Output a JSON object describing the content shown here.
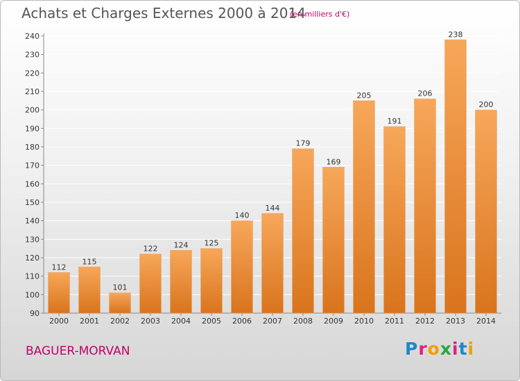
{
  "header": {
    "title": "Achats et Charges Externes 2000 à 2014",
    "subtitle": "(en milliers d'€)"
  },
  "footer": {
    "location": "BAGUER-MORVAN",
    "logo_text": "Proxiti"
  },
  "colors": {
    "bar_light": "#f7a75a",
    "bar_dark": "#d9741d",
    "title": "#555555",
    "accent": "#c0006a"
  },
  "chart_data": {
    "type": "bar",
    "title": "Achats et Charges Externes 2000 à 2014",
    "subtitle": "(en milliers d'€)",
    "categories": [
      "2000",
      "2001",
      "2002",
      "2003",
      "2004",
      "2005",
      "2006",
      "2007",
      "2008",
      "2009",
      "2010",
      "2011",
      "2012",
      "2013",
      "2014"
    ],
    "values": [
      112,
      115,
      101,
      122,
      124,
      125,
      140,
      144,
      179,
      169,
      205,
      191,
      206,
      238,
      200
    ],
    "ylim": [
      90,
      240
    ],
    "yticks": [
      90,
      100,
      110,
      120,
      130,
      140,
      150,
      160,
      170,
      180,
      190,
      200,
      210,
      220,
      230,
      240
    ],
    "grid": true,
    "data_labels": true,
    "legend": "none"
  }
}
